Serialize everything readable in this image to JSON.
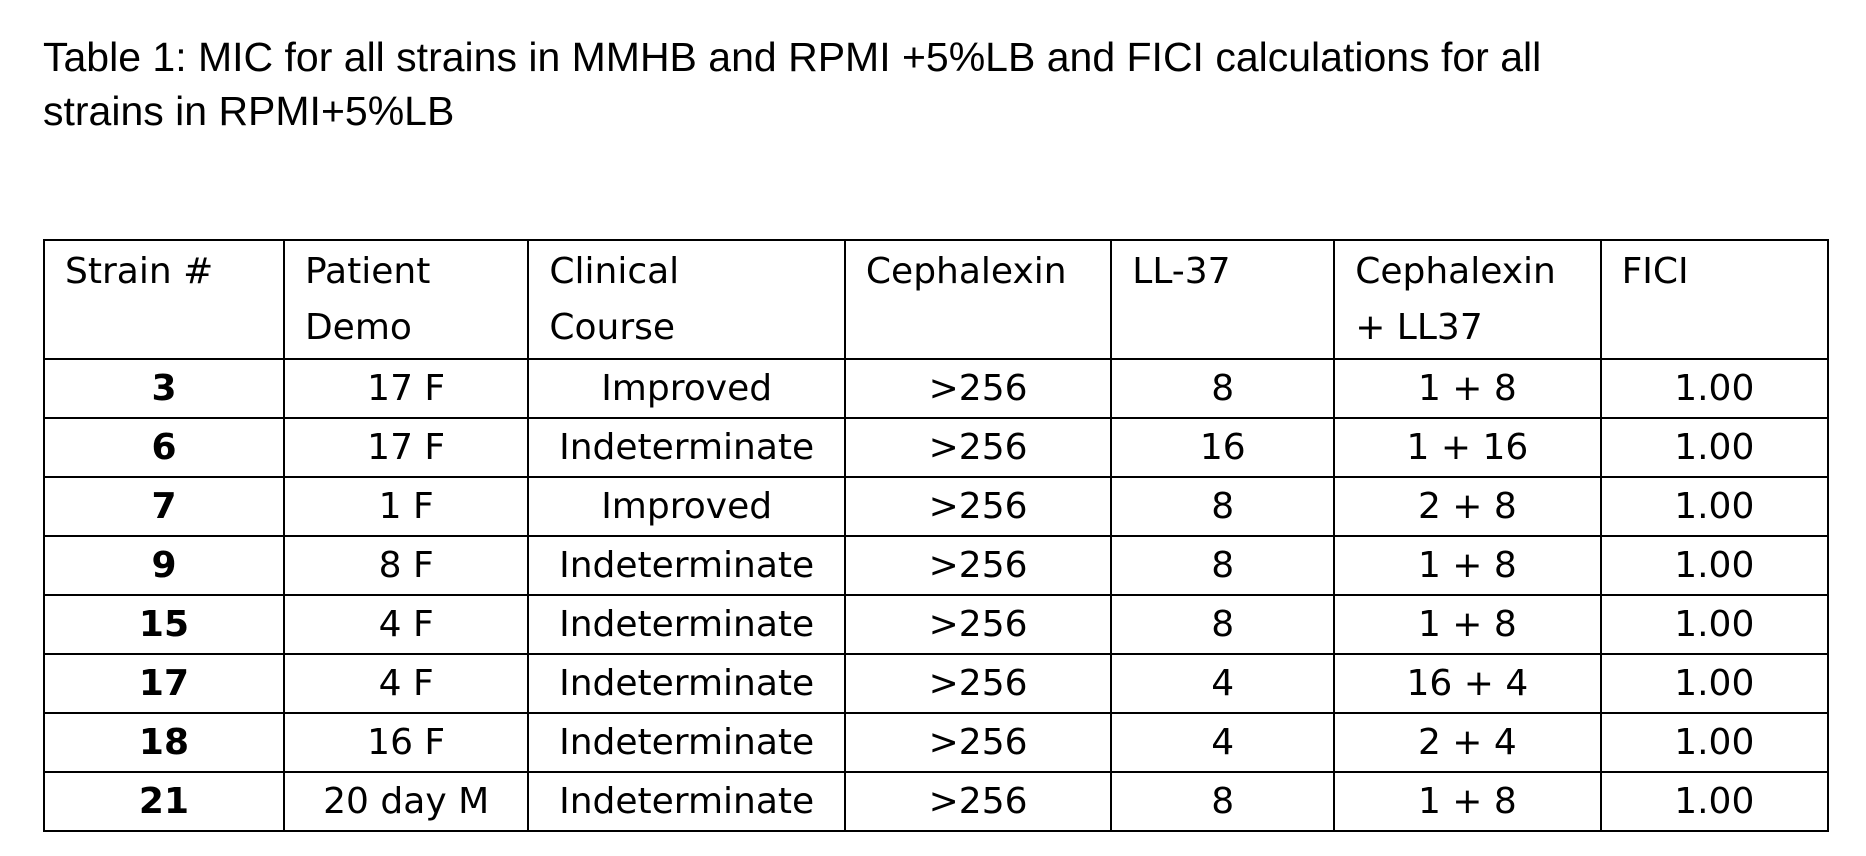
{
  "caption": {
    "line1": "Table 1: MIC for all strains in MMHB and RPMI +5%LB and FICI calculations for all",
    "line2": "strains in RPMI+5%LB"
  },
  "table": {
    "headers": [
      {
        "line1": "Strain #",
        "line2": ""
      },
      {
        "line1": "Patient",
        "line2": "Demo"
      },
      {
        "line1": "Clinical",
        "line2": "Course"
      },
      {
        "line1": "Cephalexin",
        "line2": ""
      },
      {
        "line1": "LL-37",
        "line2": ""
      },
      {
        "line1": "Cephalexin",
        "line2": "+ LL37"
      },
      {
        "line1": "FICI",
        "line2": ""
      }
    ],
    "rows": [
      [
        "3",
        "17 F",
        "Improved",
        ">256",
        "8",
        "1 + 8",
        "1.00"
      ],
      [
        "6",
        "17 F",
        "Indeterminate",
        ">256",
        "16",
        "1 + 16",
        "1.00"
      ],
      [
        "7",
        "1 F",
        "Improved",
        ">256",
        "8",
        "2 + 8",
        "1.00"
      ],
      [
        "9",
        "8 F",
        "Indeterminate",
        ">256",
        "8",
        "1 + 8",
        "1.00"
      ],
      [
        "15",
        "4 F",
        "Indeterminate",
        ">256",
        "8",
        "1 + 8",
        "1.00"
      ],
      [
        "17",
        "4 F",
        "Indeterminate",
        ">256",
        "4",
        "16 + 4",
        "1.00"
      ],
      [
        "18",
        "16 F",
        "Indeterminate",
        ">256",
        "4",
        "2 + 4",
        "1.00"
      ],
      [
        "21",
        "20 day M",
        "Indeterminate",
        ">256",
        "8",
        "1 + 8",
        "1.00"
      ]
    ]
  }
}
